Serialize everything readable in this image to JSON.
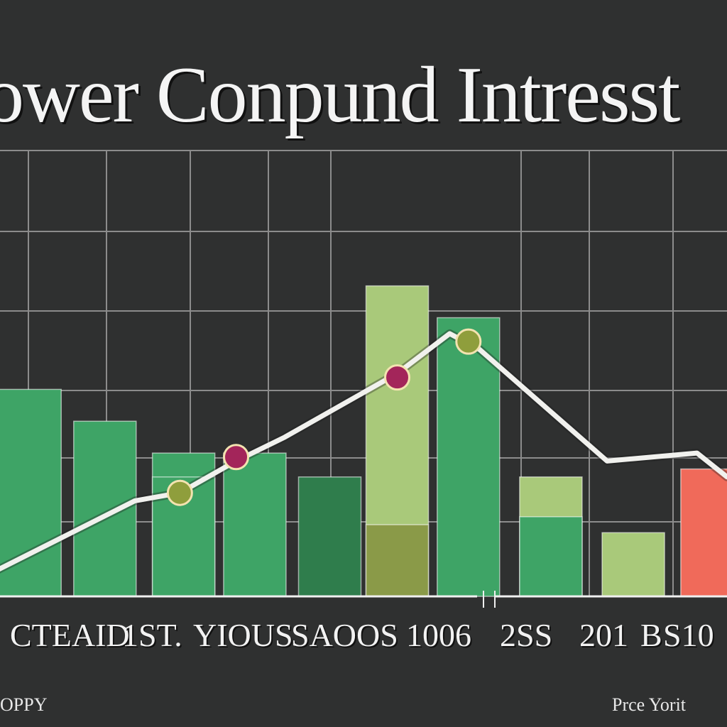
{
  "title": "ower Conpund Intresst",
  "bottom_labels": [
    "CTEAID",
    "1ST.",
    "YIOUS",
    "SAOOS",
    "1006",
    "2SS",
    "201",
    "B",
    "S10"
  ],
  "footer": {
    "left": "OPPY",
    "right": "Prce Yorit"
  },
  "colors": {
    "background": "#2f3030",
    "grid": "#8c8c8c",
    "bar_green": "#3ea466",
    "bar_dark_green": "#2f7d4c",
    "bar_light_green": "#a9c97a",
    "bar_olive": "#8a9a48",
    "bar_red": "#f06a5a",
    "line": "#f1f1ee",
    "marker_olive": "#8f9e3c",
    "marker_magenta": "#a3255a"
  },
  "chart_data": {
    "type": "bar",
    "grid": true,
    "bars": [
      {
        "x": 0.0,
        "value": 2.6,
        "color": "bar_green"
      },
      {
        "x": 1.0,
        "value": 2.2,
        "color": "bar_green"
      },
      {
        "x": 2.05,
        "value": 1.8,
        "color": "bar_green"
      },
      {
        "x": 2.05,
        "value": 1.5,
        "color": "bar_green",
        "layer": "front"
      },
      {
        "x": 3.0,
        "value": 1.8,
        "color": "bar_green"
      },
      {
        "x": 4.0,
        "value": 1.5,
        "color": "bar_dark_green"
      },
      {
        "x": 4.9,
        "value": 3.9,
        "color": "bar_light_green"
      },
      {
        "x": 4.9,
        "value": 0.9,
        "color": "bar_olive",
        "layer": "front"
      },
      {
        "x": 5.85,
        "value": 3.5,
        "color": "bar_green"
      },
      {
        "x": 6.95,
        "value": 1.5,
        "color": "bar_light_green"
      },
      {
        "x": 6.95,
        "value": 1.0,
        "color": "bar_green",
        "layer": "front"
      },
      {
        "x": 8.05,
        "value": 0.8,
        "color": "bar_light_green"
      },
      {
        "x": 9.1,
        "value": 1.6,
        "color": "bar_red"
      }
    ],
    "line": {
      "name": "",
      "points": [
        [
          -0.5,
          0.3
        ],
        [
          1.4,
          1.2
        ],
        [
          2.0,
          1.3
        ],
        [
          2.75,
          1.7
        ],
        [
          3.4,
          2.0
        ],
        [
          4.9,
          2.8
        ],
        [
          5.6,
          3.3
        ],
        [
          6.0,
          3.1
        ],
        [
          7.7,
          1.7
        ],
        [
          8.9,
          1.8
        ],
        [
          9.3,
          1.5
        ]
      ],
      "markers": [
        {
          "x": 2.0,
          "y": 1.3,
          "color": "marker_olive"
        },
        {
          "x": 2.75,
          "y": 1.75,
          "color": "marker_magenta"
        },
        {
          "x": 4.9,
          "y": 2.75,
          "color": "marker_magenta"
        },
        {
          "x": 5.85,
          "y": 3.2,
          "color": "marker_olive"
        }
      ]
    },
    "xlim": [
      -0.4,
      9.3
    ],
    "ylim": [
      0,
      5.6
    ]
  }
}
